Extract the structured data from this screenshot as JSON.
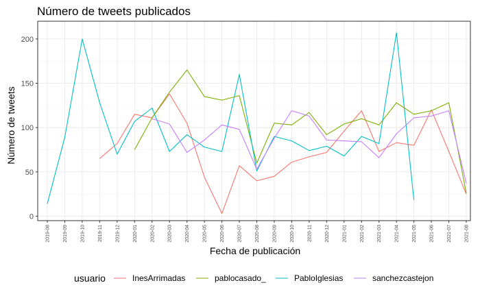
{
  "chart_data": {
    "type": "line",
    "title": "Número de tweets publicados",
    "xlabel": "Fecha de publicación",
    "ylabel": "Número de tweets",
    "ylim": [
      -5,
      220
    ],
    "yticks": [
      0,
      50,
      100,
      150,
      200
    ],
    "grid": true,
    "legend_position": "bottom",
    "legend_title": "usuario",
    "categories": [
      "2019-08",
      "2019-09",
      "2019-10",
      "2019-11",
      "2019-12",
      "2020-01",
      "2020-02",
      "2020-03",
      "2020-04",
      "2020-05",
      "2020-06",
      "2020-07",
      "2020-08",
      "2020-09",
      "2020-10",
      "2020-11",
      "2020-12",
      "2021-01",
      "2021-02",
      "2021-03",
      "2021-04",
      "2021-05",
      "2021-06",
      "2021-07",
      "2021-08"
    ],
    "series": [
      {
        "name": "InesArrimadas",
        "color": "#F8766D",
        "values": [
          null,
          null,
          null,
          65,
          82,
          115,
          111,
          138,
          105,
          44,
          3,
          57,
          40,
          45,
          61,
          67,
          72,
          96,
          119,
          73,
          83,
          80,
          120,
          73,
          25
        ]
      },
      {
        "name": "pablocasado_",
        "color": "#7CAE00",
        "values": [
          null,
          null,
          null,
          null,
          null,
          75,
          111,
          140,
          165,
          135,
          131,
          136,
          60,
          105,
          103,
          117,
          92,
          104,
          110,
          103,
          128,
          115,
          119,
          128,
          26
        ]
      },
      {
        "name": "PabloIglesias",
        "color": "#00BFC4",
        "values": [
          14,
          89,
          200,
          128,
          70,
          107,
          122,
          73,
          92,
          78,
          73,
          160,
          51,
          90,
          85,
          74,
          79,
          68,
          90,
          82,
          207,
          18,
          null,
          null,
          null
        ]
      },
      {
        "name": "sanchezcastejon",
        "color": "#C77CFF",
        "values": [
          null,
          null,
          null,
          null,
          null,
          null,
          110,
          104,
          72,
          86,
          103,
          98,
          53,
          88,
          119,
          113,
          86,
          85,
          84,
          66,
          93,
          111,
          113,
          119,
          37
        ]
      }
    ]
  }
}
